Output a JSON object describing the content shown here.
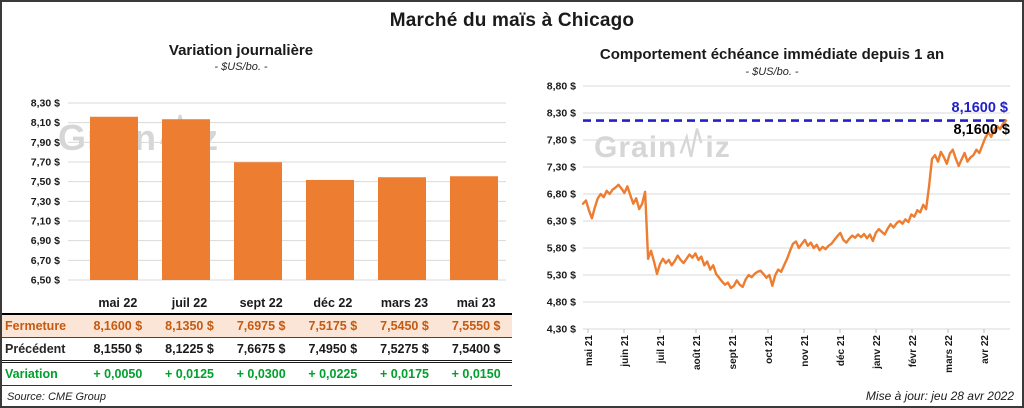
{
  "header": {
    "title": "Marché du maïs à Chicago"
  },
  "watermark": {
    "part1": "Grain",
    "part2": "iz"
  },
  "left_chart": {
    "title": "Variation journalière",
    "subtitle": "- $US/bo. -",
    "y_ticks": [
      "8,30 $",
      "8,10 $",
      "7,90 $",
      "7,70 $",
      "7,50 $",
      "7,30 $",
      "7,10 $",
      "6,90 $",
      "6,70 $",
      "6,50 $"
    ]
  },
  "right_chart": {
    "title": "Comportement échéance immédiate depuis 1 an",
    "subtitle": "- $US/bo. -",
    "y_ticks": [
      "8,80 $",
      "8,30 $",
      "7,80 $",
      "7,30 $",
      "6,80 $",
      "6,30 $",
      "5,80 $",
      "5,30 $",
      "4,80 $",
      "4,30 $"
    ],
    "ref_label_blue": "8,1600 $",
    "ref_label_black": "8,1600 $"
  },
  "table": {
    "columns": [
      "mai 22",
      "juil 22",
      "sept 22",
      "déc 22",
      "mars 23",
      "mai 23"
    ],
    "rows": [
      {
        "label": "Fermeture",
        "values": [
          "8,1600 $",
          "8,1350 $",
          "7,6975 $",
          "7,5175 $",
          "7,5450 $",
          "7,5550 $"
        ]
      },
      {
        "label": "Précédent",
        "values": [
          "8,1550 $",
          "8,1225 $",
          "7,6675 $",
          "7,4950 $",
          "7,5275 $",
          "7,5400 $"
        ]
      },
      {
        "label": "Variation",
        "values": [
          "+ 0,0050",
          "+ 0,0125",
          "+ 0,0300",
          "+ 0,0225",
          "+ 0,0175",
          "+ 0,0150"
        ]
      }
    ],
    "source": "Source: CME Group"
  },
  "footer": {
    "updated": "Mise à jour: jeu 28 avr 2022"
  },
  "colors": {
    "bar_orange": "#ED7D31",
    "fermeture_text": "#C55A11",
    "fermeture_bg": "#FBE5D6",
    "variation_green": "#00A02C",
    "reference_blue": "#2222C8",
    "gridline": "#D9D9D9",
    "axis_tick": "#BFBFBF"
  },
  "chart_data": [
    {
      "type": "bar",
      "title": "Variation journalière",
      "subtitle": "- $US/bo. -",
      "categories": [
        "mai 22",
        "juil 22",
        "sept 22",
        "déc 22",
        "mars 23",
        "mai 23"
      ],
      "values": [
        8.16,
        8.135,
        7.6975,
        7.5175,
        7.545,
        7.555
      ],
      "xlabel": "",
      "ylabel": "$US/bo.",
      "ylim": [
        6.5,
        8.3
      ],
      "ytick_step": 0.2,
      "grid": true,
      "bar_color": "#ED7D31"
    },
    {
      "type": "line",
      "title": "Comportement échéance immédiate depuis 1 an",
      "subtitle": "- $US/bo. -",
      "x_labels": [
        "mai 21",
        "juin 21",
        "juil 21",
        "août 21",
        "sept 21",
        "oct 21",
        "nov 21",
        "déc 21",
        "janv 22",
        "févr 22",
        "mars 22",
        "avr 22"
      ],
      "values": [
        6.62,
        6.68,
        6.5,
        6.35,
        6.55,
        6.72,
        6.8,
        6.74,
        6.86,
        6.8,
        6.88,
        6.92,
        6.97,
        6.9,
        6.82,
        6.94,
        6.78,
        6.62,
        6.72,
        6.52,
        6.62,
        6.84,
        5.6,
        5.75,
        5.55,
        5.32,
        5.5,
        5.6,
        5.52,
        5.58,
        5.48,
        5.56,
        5.66,
        5.58,
        5.52,
        5.6,
        5.68,
        5.62,
        5.7,
        5.58,
        5.64,
        5.48,
        5.55,
        5.4,
        5.48,
        5.32,
        5.25,
        5.18,
        5.12,
        5.16,
        5.06,
        5.1,
        5.2,
        5.12,
        5.08,
        5.22,
        5.3,
        5.26,
        5.32,
        5.36,
        5.38,
        5.32,
        5.25,
        5.3,
        5.1,
        5.3,
        5.4,
        5.36,
        5.48,
        5.6,
        5.75,
        5.88,
        5.92,
        5.8,
        5.88,
        5.95,
        5.84,
        5.9,
        5.8,
        5.86,
        5.76,
        5.82,
        5.78,
        5.84,
        5.88,
        5.95,
        6.02,
        6.08,
        5.95,
        5.9,
        5.97,
        6.03,
        5.99,
        6.05,
        6.0,
        6.06,
        5.98,
        6.05,
        5.93,
        6.08,
        6.15,
        6.1,
        6.05,
        6.16,
        6.24,
        6.18,
        6.26,
        6.3,
        6.25,
        6.33,
        6.28,
        6.42,
        6.38,
        6.5,
        6.46,
        6.6,
        6.52,
        6.95,
        7.45,
        7.52,
        7.4,
        7.58,
        7.48,
        7.36,
        7.55,
        7.62,
        7.46,
        7.32,
        7.44,
        7.56,
        7.4,
        7.48,
        7.52,
        7.62,
        7.56,
        7.7,
        7.84,
        7.94,
        7.86,
        7.98,
        8.06,
        8.0,
        8.1,
        8.16
      ],
      "ylim": [
        4.3,
        8.8
      ],
      "ytick_step": 0.5,
      "grid": true,
      "line_color": "#ED7D31",
      "reference_value": 8.16,
      "reference_label": "8,1600 $",
      "reference_color": "#2222C8",
      "legend": "none"
    }
  ]
}
